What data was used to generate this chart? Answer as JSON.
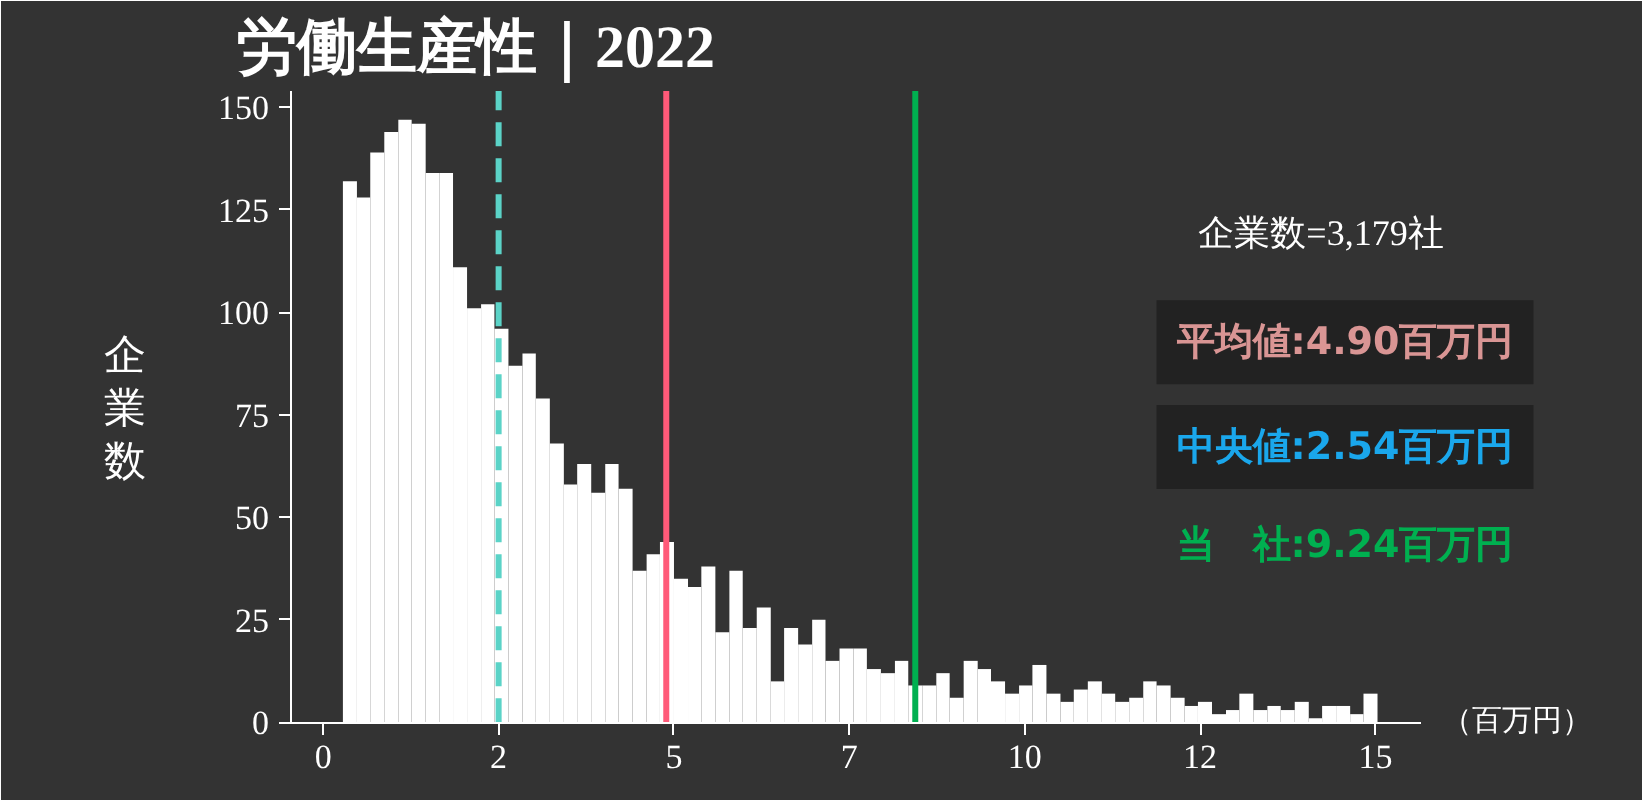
{
  "chart_data": {
    "type": "histogram",
    "title": "労働生産性｜2022",
    "xlabel": "（百万円）",
    "ylabel": "企業数",
    "bins": [
      0.28,
      0.48,
      0.67,
      0.87,
      1.07,
      1.26,
      1.46,
      1.66,
      1.85,
      2.05,
      2.25,
      2.44,
      2.64,
      2.84,
      3.03,
      3.23,
      3.43,
      3.62,
      3.82,
      4.02,
      4.21,
      4.41,
      4.61,
      4.8,
      5.0,
      5.2,
      5.39,
      5.59,
      5.79,
      5.98,
      6.18,
      6.38,
      6.57,
      6.77,
      6.97,
      7.16,
      7.36,
      7.56,
      7.75,
      7.95,
      8.15,
      8.34,
      8.54,
      8.74,
      8.93,
      9.13,
      9.33,
      9.52,
      9.72,
      9.92,
      10.11,
      10.31,
      10.51,
      10.7,
      10.9,
      11.1,
      11.29,
      11.49,
      11.69,
      11.88,
      12.08,
      12.28,
      12.47,
      12.67,
      12.87,
      13.06,
      13.26,
      13.46,
      13.65,
      13.85,
      14.05,
      14.24,
      14.44,
      14.64,
      14.83,
      15.03
    ],
    "values": [
      132,
      128,
      139,
      144,
      147,
      146,
      134,
      134,
      111,
      101,
      102,
      96,
      87,
      90,
      79,
      68,
      58,
      63,
      56,
      63,
      57,
      37,
      41,
      44,
      35,
      33,
      38,
      22,
      37,
      23,
      28,
      10,
      23,
      19,
      25,
      15,
      18,
      18,
      13,
      12,
      15,
      9,
      9,
      12,
      6,
      15,
      13,
      10,
      7,
      9,
      14,
      7,
      5,
      8,
      10,
      7,
      5,
      6,
      10,
      9,
      6,
      4,
      5,
      2,
      3,
      7,
      3,
      4,
      3,
      5,
      1,
      4,
      4,
      2,
      7
    ],
    "color": "#ffffff",
    "xlim": [
      -0.46,
      15.65
    ],
    "ylim": [
      0,
      154
    ],
    "xticks": [
      0,
      {
        "value": 2.5,
        "label": "2"
      },
      5,
      {
        "value": 7.5,
        "label": "7"
      },
      10,
      {
        "value": 12.5,
        "label": "12"
      },
      15
    ],
    "yticks": [
      0,
      25,
      50,
      75,
      100,
      125,
      150
    ],
    "grid": false,
    "ref_lines": [
      {
        "axis": "x",
        "value": 2.5,
        "color": "#5bd3c7",
        "line_style": "dashed"
      },
      {
        "axis": "x",
        "value": 4.89,
        "color": "#ff5a79"
      },
      {
        "axis": "x",
        "value": 8.44,
        "color": "#00b050"
      }
    ],
    "annotations": [
      "企業数=3,179社",
      "平均値:4.90百万円",
      "中央値:2.54百万円",
      "当　社:9.24百万円"
    ]
  }
}
